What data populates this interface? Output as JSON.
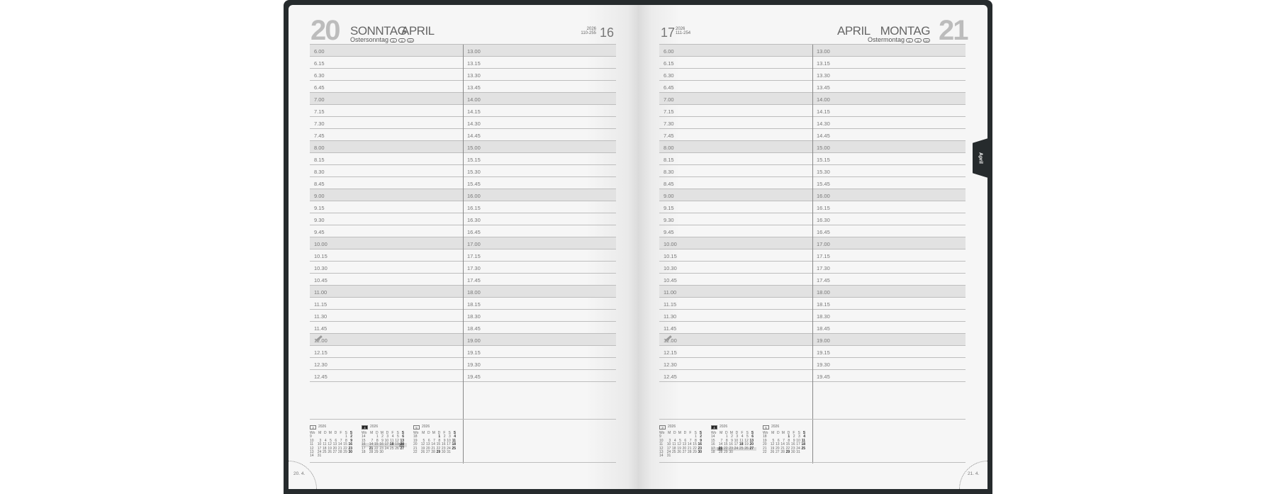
{
  "left_page": {
    "day_number": "20",
    "weekday": "SONNTAG",
    "month": "APRIL",
    "holiday": "Ostersonntag",
    "holiday_regions": [
      "D",
      "A",
      "CH"
    ],
    "year": "2026",
    "day_of_year": "110-255",
    "week_number": "16",
    "footer_date": "20. 4.",
    "highlight_week": "16",
    "boxed_day": "20"
  },
  "right_page": {
    "day_number": "21",
    "weekday": "MONTAG",
    "month": "APRIL",
    "holiday": "Ostermontag",
    "holiday_regions": [
      "D",
      "A",
      "CH"
    ],
    "year": "2026",
    "day_of_year": "111-254",
    "week_number": "17",
    "footer_date": "21. 4.",
    "highlight_week": "17",
    "boxed_day": "21"
  },
  "month_tab": "April",
  "times_left": [
    "6.00",
    "6.15",
    "6.30",
    "6.45",
    "7.00",
    "7.15",
    "7.30",
    "7.45",
    "8.00",
    "8.15",
    "8.30",
    "8.45",
    "9.00",
    "9.15",
    "9.30",
    "9.45",
    "10.00",
    "10.15",
    "10.30",
    "10.45",
    "11.00",
    "11.15",
    "11.30",
    "11.45",
    "12.00",
    "12.15",
    "12.30",
    "12.45"
  ],
  "times_right": [
    "13.00",
    "13.15",
    "13.30",
    "13.45",
    "14.00",
    "14.15",
    "14.30",
    "14.45",
    "15.00",
    "15.15",
    "15.30",
    "15.45",
    "16.00",
    "16.15",
    "16.30",
    "16.45",
    "17.00",
    "17.15",
    "17.30",
    "17.45",
    "18.00",
    "18.15",
    "18.30",
    "18.45",
    "19.00",
    "19.15",
    "19.30",
    "19.45"
  ],
  "mini_calendars": [
    {
      "month": "3",
      "year": "2026",
      "current": false,
      "weekday_header": [
        "Wo",
        "M",
        "D",
        "M",
        "D",
        "F",
        "S",
        "S"
      ],
      "weeks": [
        [
          "9",
          "",
          "",
          "",
          "",
          "",
          "1",
          "2"
        ],
        [
          "10",
          "3",
          "4",
          "5",
          "6",
          "7",
          "8",
          "9"
        ],
        [
          "11",
          "10",
          "11",
          "12",
          "13",
          "14",
          "15",
          "16"
        ],
        [
          "12",
          "17",
          "18",
          "19",
          "20",
          "21",
          "22",
          "23"
        ],
        [
          "13",
          "24",
          "25",
          "26",
          "27",
          "28",
          "29",
          "30"
        ],
        [
          "14",
          "31",
          "",
          "",
          "",
          "",
          "",
          ""
        ]
      ],
      "bold": [
        "2",
        "9",
        "16",
        "23",
        "30"
      ]
    },
    {
      "month": "4",
      "year": "2026",
      "current": true,
      "weekday_header": [
        "Wo",
        "M",
        "D",
        "M",
        "D",
        "F",
        "S",
        "S"
      ],
      "weeks": [
        [
          "14",
          "",
          "1",
          "2",
          "3",
          "4",
          "5",
          "6"
        ],
        [
          "15",
          "7",
          "8",
          "9",
          "10",
          "11",
          "12",
          "13"
        ],
        [
          "16",
          "14",
          "15",
          "16",
          "17",
          "18",
          "19",
          "20"
        ],
        [
          "17",
          "21",
          "22",
          "23",
          "24",
          "25",
          "26",
          "27"
        ],
        [
          "18",
          "28",
          "29",
          "30",
          "",
          "",
          "",
          ""
        ]
      ],
      "bold": [
        "6",
        "13",
        "18",
        "20",
        "21",
        "27"
      ]
    },
    {
      "month": "5",
      "year": "2026",
      "current": false,
      "weekday_header": [
        "Wo",
        "M",
        "D",
        "M",
        "D",
        "F",
        "S",
        "S"
      ],
      "weeks": [
        [
          "18",
          "",
          "",
          "",
          "1",
          "2",
          "3",
          "4"
        ],
        [
          "19",
          "5",
          "6",
          "7",
          "8",
          "9",
          "10",
          "11"
        ],
        [
          "20",
          "12",
          "13",
          "14",
          "15",
          "16",
          "17",
          "18"
        ],
        [
          "21",
          "19",
          "20",
          "21",
          "22",
          "23",
          "24",
          "25"
        ],
        [
          "22",
          "26",
          "27",
          "28",
          "29",
          "30",
          "31",
          ""
        ]
      ],
      "bold": [
        "1",
        "4",
        "11",
        "18",
        "25",
        "29"
      ]
    }
  ],
  "colors": {
    "cover": "#262b2d",
    "page": "#f6f6f6",
    "hour_row": "#e2e2e2",
    "day_number": "#bcbcbc"
  },
  "icons": {
    "notes": "pencil-icon"
  }
}
